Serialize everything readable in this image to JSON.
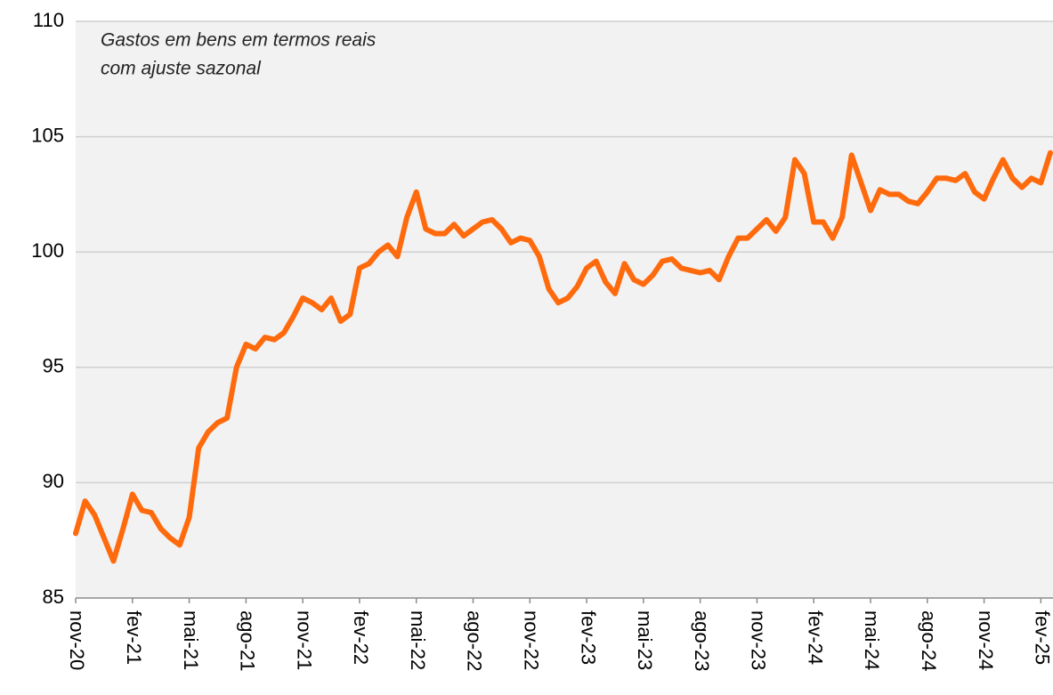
{
  "chart_data": {
    "type": "line",
    "annotation": [
      "Gastos em bens em termos reais",
      "com ajuste sazonal"
    ],
    "categories": [
      "nov-20",
      null,
      null,
      null,
      null,
      null,
      "fev-21",
      null,
      null,
      null,
      null,
      null,
      "mai-21",
      null,
      null,
      null,
      null,
      null,
      "ago-21",
      null,
      null,
      null,
      null,
      null,
      "nov-21",
      null,
      null,
      null,
      null,
      null,
      "fev-22",
      null,
      null,
      null,
      null,
      null,
      "mai-22",
      null,
      null,
      null,
      null,
      null,
      "ago-22",
      null,
      null,
      null,
      null,
      null,
      "nov-22",
      null,
      null,
      null,
      null,
      null,
      "fev-23",
      null,
      null,
      null,
      null,
      null,
      "mai-23",
      null,
      null,
      null,
      null,
      null,
      "ago-23",
      null,
      null,
      null,
      null,
      null,
      "nov-23",
      null,
      null,
      null,
      null,
      null,
      "fev-24",
      null,
      null,
      null,
      null,
      null,
      "mai-24",
      null,
      null,
      null,
      null,
      null,
      "ago-24",
      null,
      null,
      null,
      null,
      null,
      "nov-24",
      null,
      null,
      null,
      null,
      null,
      "fev-25",
      null
    ],
    "series": [
      {
        "color": "#ff6a0d",
        "values": [
          87.8,
          89.2,
          88.6,
          87.6,
          86.6,
          88,
          89.5,
          88.8,
          88.7,
          88,
          87.6,
          87.3,
          88.5,
          91.5,
          92.2,
          92.6,
          92.8,
          95,
          96,
          95.8,
          96.3,
          96.2,
          96.5,
          97.2,
          98,
          97.8,
          97.5,
          98,
          97,
          97.3,
          99.3,
          99.5,
          100,
          100.3,
          99.8,
          101.5,
          102.6,
          101,
          100.8,
          100.8,
          101.2,
          100.7,
          101,
          101.3,
          101.4,
          101,
          100.4,
          100.6,
          100.5,
          99.8,
          98.4,
          97.8,
          98,
          98.5,
          99.3,
          99.6,
          98.7,
          98.2,
          99.5,
          98.8,
          98.6,
          99,
          99.6,
          99.7,
          99.3,
          99.2,
          99.1,
          99.2,
          98.8,
          99.8,
          100.6,
          100.6,
          101,
          101.4,
          100.9,
          101.5,
          104,
          103.4,
          101.3,
          101.3,
          100.6,
          101.5,
          104.2,
          103,
          101.8,
          102.7,
          102.5,
          102.5,
          102.2,
          102.1,
          102.6,
          103.2,
          103.2,
          103.1,
          103.4,
          102.6,
          102.3,
          103.2,
          104,
          103.2,
          102.8,
          103.2,
          103,
          104.3
        ]
      }
    ],
    "ylim": [
      85,
      110
    ],
    "yticks": [
      85,
      90,
      95,
      100,
      105,
      110
    ],
    "grid": true
  }
}
